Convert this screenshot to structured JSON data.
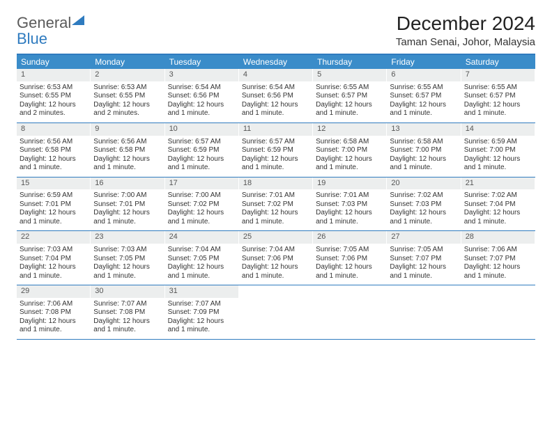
{
  "logo": {
    "text1": "General",
    "text2": "Blue"
  },
  "title": "December 2024",
  "location": "Taman Senai, Johor, Malaysia",
  "colors": {
    "header_bg": "#3a8cc9",
    "header_border": "#2f7bbf",
    "daynum_bg": "#eceeee",
    "text": "#333333"
  },
  "weekdays": [
    "Sunday",
    "Monday",
    "Tuesday",
    "Wednesday",
    "Thursday",
    "Friday",
    "Saturday"
  ],
  "weeks": [
    [
      {
        "n": "1",
        "sunrise": "Sunrise: 6:53 AM",
        "sunset": "Sunset: 6:55 PM",
        "daylight": "Daylight: 12 hours and 2 minutes."
      },
      {
        "n": "2",
        "sunrise": "Sunrise: 6:53 AM",
        "sunset": "Sunset: 6:55 PM",
        "daylight": "Daylight: 12 hours and 2 minutes."
      },
      {
        "n": "3",
        "sunrise": "Sunrise: 6:54 AM",
        "sunset": "Sunset: 6:56 PM",
        "daylight": "Daylight: 12 hours and 1 minute."
      },
      {
        "n": "4",
        "sunrise": "Sunrise: 6:54 AM",
        "sunset": "Sunset: 6:56 PM",
        "daylight": "Daylight: 12 hours and 1 minute."
      },
      {
        "n": "5",
        "sunrise": "Sunrise: 6:55 AM",
        "sunset": "Sunset: 6:57 PM",
        "daylight": "Daylight: 12 hours and 1 minute."
      },
      {
        "n": "6",
        "sunrise": "Sunrise: 6:55 AM",
        "sunset": "Sunset: 6:57 PM",
        "daylight": "Daylight: 12 hours and 1 minute."
      },
      {
        "n": "7",
        "sunrise": "Sunrise: 6:55 AM",
        "sunset": "Sunset: 6:57 PM",
        "daylight": "Daylight: 12 hours and 1 minute."
      }
    ],
    [
      {
        "n": "8",
        "sunrise": "Sunrise: 6:56 AM",
        "sunset": "Sunset: 6:58 PM",
        "daylight": "Daylight: 12 hours and 1 minute."
      },
      {
        "n": "9",
        "sunrise": "Sunrise: 6:56 AM",
        "sunset": "Sunset: 6:58 PM",
        "daylight": "Daylight: 12 hours and 1 minute."
      },
      {
        "n": "10",
        "sunrise": "Sunrise: 6:57 AM",
        "sunset": "Sunset: 6:59 PM",
        "daylight": "Daylight: 12 hours and 1 minute."
      },
      {
        "n": "11",
        "sunrise": "Sunrise: 6:57 AM",
        "sunset": "Sunset: 6:59 PM",
        "daylight": "Daylight: 12 hours and 1 minute."
      },
      {
        "n": "12",
        "sunrise": "Sunrise: 6:58 AM",
        "sunset": "Sunset: 7:00 PM",
        "daylight": "Daylight: 12 hours and 1 minute."
      },
      {
        "n": "13",
        "sunrise": "Sunrise: 6:58 AM",
        "sunset": "Sunset: 7:00 PM",
        "daylight": "Daylight: 12 hours and 1 minute."
      },
      {
        "n": "14",
        "sunrise": "Sunrise: 6:59 AM",
        "sunset": "Sunset: 7:00 PM",
        "daylight": "Daylight: 12 hours and 1 minute."
      }
    ],
    [
      {
        "n": "15",
        "sunrise": "Sunrise: 6:59 AM",
        "sunset": "Sunset: 7:01 PM",
        "daylight": "Daylight: 12 hours and 1 minute."
      },
      {
        "n": "16",
        "sunrise": "Sunrise: 7:00 AM",
        "sunset": "Sunset: 7:01 PM",
        "daylight": "Daylight: 12 hours and 1 minute."
      },
      {
        "n": "17",
        "sunrise": "Sunrise: 7:00 AM",
        "sunset": "Sunset: 7:02 PM",
        "daylight": "Daylight: 12 hours and 1 minute."
      },
      {
        "n": "18",
        "sunrise": "Sunrise: 7:01 AM",
        "sunset": "Sunset: 7:02 PM",
        "daylight": "Daylight: 12 hours and 1 minute."
      },
      {
        "n": "19",
        "sunrise": "Sunrise: 7:01 AM",
        "sunset": "Sunset: 7:03 PM",
        "daylight": "Daylight: 12 hours and 1 minute."
      },
      {
        "n": "20",
        "sunrise": "Sunrise: 7:02 AM",
        "sunset": "Sunset: 7:03 PM",
        "daylight": "Daylight: 12 hours and 1 minute."
      },
      {
        "n": "21",
        "sunrise": "Sunrise: 7:02 AM",
        "sunset": "Sunset: 7:04 PM",
        "daylight": "Daylight: 12 hours and 1 minute."
      }
    ],
    [
      {
        "n": "22",
        "sunrise": "Sunrise: 7:03 AM",
        "sunset": "Sunset: 7:04 PM",
        "daylight": "Daylight: 12 hours and 1 minute."
      },
      {
        "n": "23",
        "sunrise": "Sunrise: 7:03 AM",
        "sunset": "Sunset: 7:05 PM",
        "daylight": "Daylight: 12 hours and 1 minute."
      },
      {
        "n": "24",
        "sunrise": "Sunrise: 7:04 AM",
        "sunset": "Sunset: 7:05 PM",
        "daylight": "Daylight: 12 hours and 1 minute."
      },
      {
        "n": "25",
        "sunrise": "Sunrise: 7:04 AM",
        "sunset": "Sunset: 7:06 PM",
        "daylight": "Daylight: 12 hours and 1 minute."
      },
      {
        "n": "26",
        "sunrise": "Sunrise: 7:05 AM",
        "sunset": "Sunset: 7:06 PM",
        "daylight": "Daylight: 12 hours and 1 minute."
      },
      {
        "n": "27",
        "sunrise": "Sunrise: 7:05 AM",
        "sunset": "Sunset: 7:07 PM",
        "daylight": "Daylight: 12 hours and 1 minute."
      },
      {
        "n": "28",
        "sunrise": "Sunrise: 7:06 AM",
        "sunset": "Sunset: 7:07 PM",
        "daylight": "Daylight: 12 hours and 1 minute."
      }
    ],
    [
      {
        "n": "29",
        "sunrise": "Sunrise: 7:06 AM",
        "sunset": "Sunset: 7:08 PM",
        "daylight": "Daylight: 12 hours and 1 minute."
      },
      {
        "n": "30",
        "sunrise": "Sunrise: 7:07 AM",
        "sunset": "Sunset: 7:08 PM",
        "daylight": "Daylight: 12 hours and 1 minute."
      },
      {
        "n": "31",
        "sunrise": "Sunrise: 7:07 AM",
        "sunset": "Sunset: 7:09 PM",
        "daylight": "Daylight: 12 hours and 1 minute."
      },
      null,
      null,
      null,
      null
    ]
  ]
}
